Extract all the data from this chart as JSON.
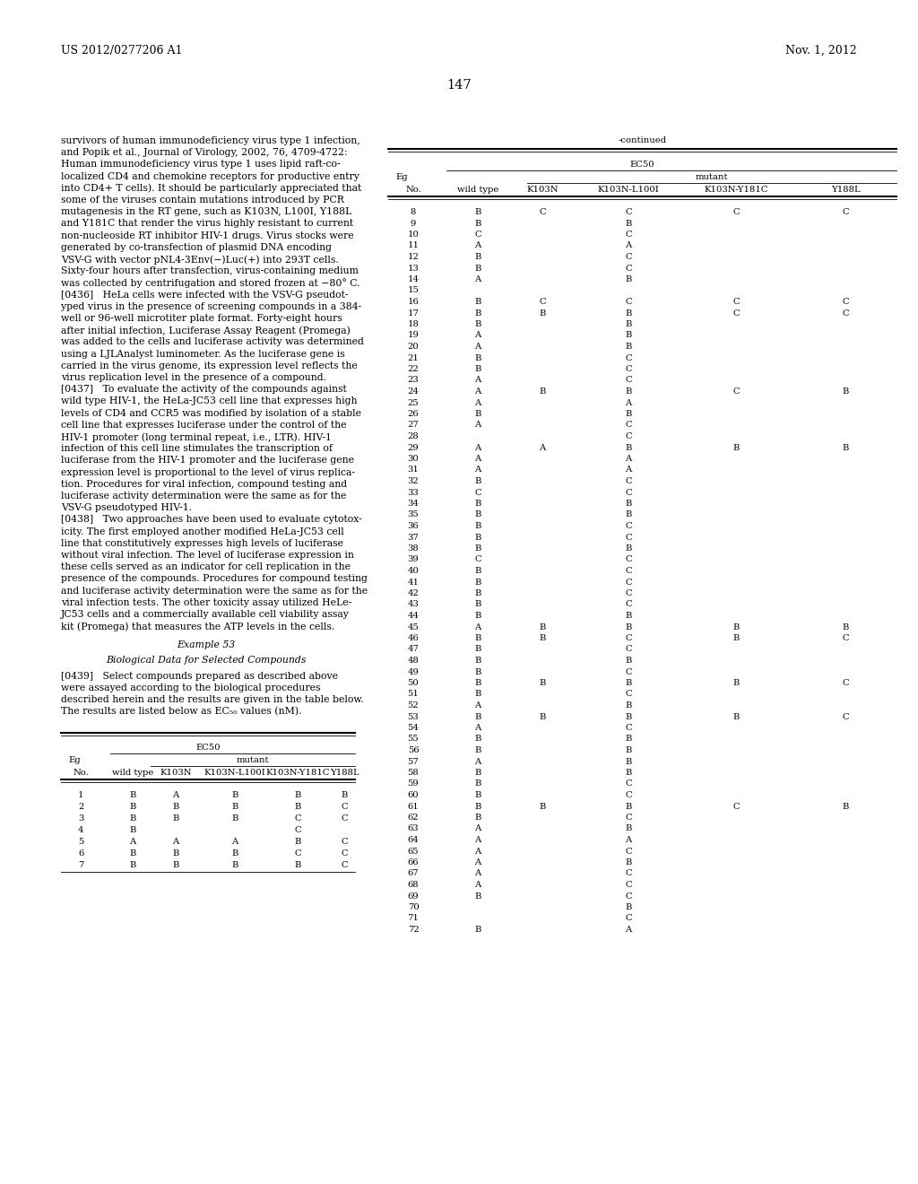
{
  "page_number": "147",
  "patent_number": "US 2012/0277206 A1",
  "patent_date": "Nov. 1, 2012",
  "left_text": [
    "survivors of human immunodeficiency virus type 1 infection,",
    "and Popik et al., Journal of Virology, 2002, 76, 4709-4722:",
    "Human immunodeficiency virus type 1 uses lipid raft-co-",
    "localized CD4 and chemokine receptors for productive entry",
    "into CD4+ T cells). It should be particularly appreciated that",
    "some of the viruses contain mutations introduced by PCR",
    "mutagenesis in the RT gene, such as K103N, L100I, Y188L",
    "and Y181C that render the virus highly resistant to current",
    "non-nucleoside RT inhibitor HIV-1 drugs. Virus stocks were",
    "generated by co-transfection of plasmid DNA encoding",
    "VSV-G with vector pNL4-3Env(−)Luc(+) into 293T cells.",
    "Sixty-four hours after transfection, virus-containing medium",
    "was collected by centrifugation and stored frozen at −80° C.",
    "[0436]   HeLa cells were infected with the VSV-G pseudot-",
    "yped virus in the presence of screening compounds in a 384-",
    "well or 96-well microtiter plate format. Forty-eight hours",
    "after initial infection, Luciferase Assay Reagent (Promega)",
    "was added to the cells and luciferase activity was determined",
    "using a LJLAnalyst luminometer. As the luciferase gene is",
    "carried in the virus genome, its expression level reflects the",
    "virus replication level in the presence of a compound.",
    "[0437]   To evaluate the activity of the compounds against",
    "wild type HIV-1, the HeLa-JC53 cell line that expresses high",
    "levels of CD4 and CCR5 was modified by isolation of a stable",
    "cell line that expresses luciferase under the control of the",
    "HIV-1 promoter (long terminal repeat, i.e., LTR). HIV-1",
    "infection of this cell line stimulates the transcription of",
    "luciferase from the HIV-1 promoter and the luciferase gene",
    "expression level is proportional to the level of virus replica-",
    "tion. Procedures for viral infection, compound testing and",
    "luciferase activity determination were the same as for the",
    "VSV-G pseudotyped HIV-1.",
    "[0438]   Two approaches have been used to evaluate cytotox-",
    "icity. The first employed another modified HeLa-JC53 cell",
    "line that constitutively expresses high levels of luciferase",
    "without viral infection. The level of luciferase expression in",
    "these cells served as an indicator for cell replication in the",
    "presence of the compounds. Procedures for compound testing",
    "and luciferase activity determination were the same as for the",
    "viral infection tests. The other toxicity assay utilized HeLe-",
    "JC53 cells and a commercially available cell viability assay",
    "kit (Promega) that measures the ATP levels in the cells."
  ],
  "example_label": "Example 53",
  "bio_data_label": "Biological Data for Selected Compounds",
  "para_0439": "[0439]   Select compounds prepared as described above were assayed according to the biological procedures described herein and the results are given in the table below. The results are listed below as EC",
  "para_0439_sub": "50",
  "para_0439_end": " values (nM).",
  "continued_label": "-continued",
  "table_header_ec50": "EC50",
  "table_header_eg": "Eg",
  "table_header_mutant": "mutant",
  "table_col_no": "No.",
  "table_col_wildtype": "wild type",
  "table_col_k103n": "K103N",
  "table_col_k103n_l100i": "K103N-L100I",
  "table_col_k103n_y181c": "K103N-Y181C",
  "table_col_y188l": "Y188L",
  "table_data_continued": [
    [
      8,
      "B",
      "C",
      "C",
      "C",
      "C"
    ],
    [
      9,
      "B",
      "",
      "B",
      "",
      ""
    ],
    [
      10,
      "C",
      "",
      "C",
      "",
      ""
    ],
    [
      11,
      "A",
      "",
      "A",
      "",
      ""
    ],
    [
      12,
      "B",
      "",
      "C",
      "",
      ""
    ],
    [
      13,
      "B",
      "",
      "C",
      "",
      ""
    ],
    [
      14,
      "A",
      "",
      "B",
      "",
      ""
    ],
    [
      15,
      "",
      "",
      "",
      "",
      ""
    ],
    [
      16,
      "B",
      "C",
      "C",
      "C",
      "C"
    ],
    [
      17,
      "B",
      "B",
      "B",
      "C",
      "C"
    ],
    [
      18,
      "B",
      "",
      "B",
      "",
      ""
    ],
    [
      19,
      "A",
      "",
      "B",
      "",
      ""
    ],
    [
      20,
      "A",
      "",
      "B",
      "",
      ""
    ],
    [
      21,
      "B",
      "",
      "C",
      "",
      ""
    ],
    [
      22,
      "B",
      "",
      "C",
      "",
      ""
    ],
    [
      23,
      "A",
      "",
      "C",
      "",
      ""
    ],
    [
      24,
      "A",
      "B",
      "B",
      "C",
      "B"
    ],
    [
      25,
      "A",
      "",
      "A",
      "",
      ""
    ],
    [
      26,
      "B",
      "",
      "B",
      "",
      ""
    ],
    [
      27,
      "A",
      "",
      "C",
      "",
      ""
    ],
    [
      28,
      "",
      "",
      "C",
      "",
      ""
    ],
    [
      29,
      "A",
      "A",
      "B",
      "B",
      "B"
    ],
    [
      30,
      "A",
      "",
      "A",
      "",
      ""
    ],
    [
      31,
      "A",
      "",
      "A",
      "",
      ""
    ],
    [
      32,
      "B",
      "",
      "C",
      "",
      ""
    ],
    [
      33,
      "C",
      "",
      "C",
      "",
      ""
    ],
    [
      34,
      "B",
      "",
      "B",
      "",
      ""
    ],
    [
      35,
      "B",
      "",
      "B",
      "",
      ""
    ],
    [
      36,
      "B",
      "",
      "C",
      "",
      ""
    ],
    [
      37,
      "B",
      "",
      "C",
      "",
      ""
    ],
    [
      38,
      "B",
      "",
      "B",
      "",
      ""
    ],
    [
      39,
      "C",
      "",
      "C",
      "",
      ""
    ],
    [
      40,
      "B",
      "",
      "C",
      "",
      ""
    ],
    [
      41,
      "B",
      "",
      "C",
      "",
      ""
    ],
    [
      42,
      "B",
      "",
      "C",
      "",
      ""
    ],
    [
      43,
      "B",
      "",
      "C",
      "",
      ""
    ],
    [
      44,
      "B",
      "",
      "B",
      "",
      ""
    ],
    [
      45,
      "A",
      "B",
      "B",
      "B",
      "B"
    ],
    [
      46,
      "B",
      "B",
      "C",
      "B",
      "C"
    ],
    [
      47,
      "B",
      "",
      "C",
      "",
      ""
    ],
    [
      48,
      "B",
      "",
      "B",
      "",
      ""
    ],
    [
      49,
      "B",
      "",
      "C",
      "",
      ""
    ],
    [
      50,
      "B",
      "B",
      "B",
      "B",
      "C"
    ],
    [
      51,
      "B",
      "",
      "C",
      "",
      ""
    ],
    [
      52,
      "A",
      "",
      "B",
      "",
      ""
    ],
    [
      53,
      "B",
      "B",
      "B",
      "B",
      "C"
    ],
    [
      54,
      "A",
      "",
      "C",
      "",
      ""
    ],
    [
      55,
      "B",
      "",
      "B",
      "",
      ""
    ],
    [
      56,
      "B",
      "",
      "B",
      "",
      ""
    ],
    [
      57,
      "A",
      "",
      "B",
      "",
      ""
    ],
    [
      58,
      "B",
      "",
      "B",
      "",
      ""
    ],
    [
      59,
      "B",
      "",
      "C",
      "",
      ""
    ],
    [
      60,
      "B",
      "",
      "C",
      "",
      ""
    ],
    [
      61,
      "B",
      "B",
      "B",
      "C",
      "B"
    ],
    [
      62,
      "B",
      "",
      "C",
      "",
      ""
    ],
    [
      63,
      "A",
      "",
      "B",
      "",
      ""
    ],
    [
      64,
      "A",
      "",
      "A",
      "",
      ""
    ],
    [
      65,
      "A",
      "",
      "C",
      "",
      ""
    ],
    [
      66,
      "A",
      "",
      "B",
      "",
      ""
    ],
    [
      67,
      "A",
      "",
      "C",
      "",
      ""
    ],
    [
      68,
      "A",
      "",
      "C",
      "",
      ""
    ],
    [
      69,
      "B",
      "",
      "C",
      "",
      ""
    ],
    [
      70,
      "",
      "",
      "B",
      "",
      ""
    ],
    [
      71,
      "",
      "",
      "C",
      "",
      ""
    ],
    [
      72,
      "B",
      "",
      "A",
      "",
      ""
    ]
  ],
  "bottom_table_data": [
    [
      1,
      "B",
      "A",
      "B",
      "B",
      "B"
    ],
    [
      2,
      "B",
      "B",
      "B",
      "B",
      "C"
    ],
    [
      3,
      "B",
      "B",
      "B",
      "C",
      "C"
    ],
    [
      4,
      "B",
      "",
      "",
      "C",
      ""
    ],
    [
      5,
      "A",
      "A",
      "A",
      "B",
      "C"
    ],
    [
      6,
      "B",
      "B",
      "B",
      "C",
      "C"
    ],
    [
      7,
      "B",
      "B",
      "B",
      "B",
      "C"
    ]
  ]
}
